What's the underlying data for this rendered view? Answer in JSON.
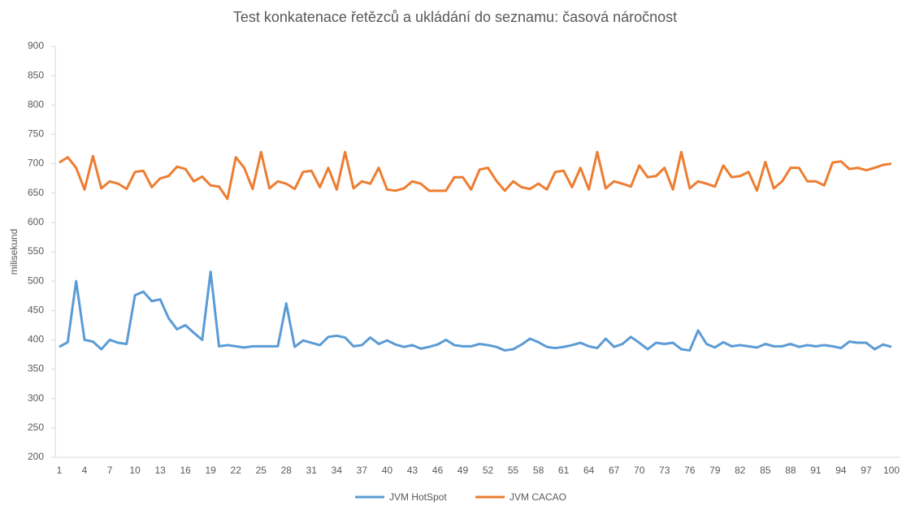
{
  "chart_data": {
    "type": "line",
    "title": "Test konkatenace řetězců a ukládání do seznamu: časová náročnost",
    "y_label": "milisekund",
    "categories": [
      "1",
      null,
      null,
      "4",
      null,
      null,
      "7",
      null,
      null,
      "10",
      null,
      null,
      "13",
      null,
      null,
      "16",
      null,
      null,
      "19",
      null,
      null,
      "22",
      null,
      null,
      "25",
      null,
      null,
      "28",
      null,
      null,
      "31",
      null,
      null,
      "34",
      null,
      null,
      "37",
      null,
      null,
      "40",
      null,
      null,
      "43",
      null,
      null,
      "46",
      null,
      null,
      "49",
      null,
      null,
      "52",
      null,
      null,
      "55",
      null,
      null,
      "58",
      null,
      null,
      "61",
      null,
      null,
      "64",
      null,
      null,
      "67",
      null,
      null,
      "70",
      null,
      null,
      "73",
      null,
      null,
      "76",
      null,
      null,
      "79",
      null,
      null,
      "82",
      null,
      null,
      "85",
      null,
      null,
      "88",
      null,
      null,
      "91",
      null,
      null,
      "94",
      null,
      null,
      "97",
      null,
      null,
      "100"
    ],
    "series": [
      {
        "name": "JVM HotSpot",
        "color": "#5b9bd5",
        "values": [
          388,
          396,
          500,
          400,
          397,
          384,
          400,
          395,
          393,
          476,
          482,
          466,
          469,
          437,
          418,
          425,
          412,
          400,
          516,
          389,
          391,
          389,
          387,
          389,
          389,
          389,
          389,
          462,
          388,
          399,
          395,
          391,
          405,
          407,
          404,
          389,
          391,
          404,
          393,
          399,
          392,
          388,
          391,
          385,
          388,
          392,
          400,
          391,
          389,
          389,
          393,
          391,
          388,
          382,
          384,
          392,
          402,
          396,
          388,
          386,
          388,
          391,
          395,
          389,
          386,
          402,
          388,
          393,
          405,
          395,
          384,
          395,
          393,
          395,
          384,
          382,
          416,
          393,
          387,
          396,
          389,
          391,
          389,
          387,
          393,
          389,
          389,
          393,
          388,
          391,
          389,
          391,
          389,
          386,
          397,
          395,
          395,
          384,
          392,
          388
        ]
      },
      {
        "name": "JVM CACAO",
        "color": "#ed7d31",
        "values": [
          702,
          711,
          693,
          656,
          713,
          658,
          670,
          666,
          657,
          686,
          688,
          660,
          675,
          679,
          695,
          691,
          670,
          678,
          663,
          661,
          640,
          711,
          693,
          657,
          720,
          658,
          670,
          666,
          657,
          686,
          688,
          660,
          693,
          656,
          720,
          658,
          670,
          666,
          693,
          656,
          654,
          658,
          670,
          666,
          654,
          654,
          654,
          677,
          677,
          656,
          690,
          693,
          671,
          654,
          670,
          660,
          657,
          666,
          656,
          686,
          688,
          660,
          693,
          656,
          720,
          658,
          670,
          666,
          661,
          697,
          677,
          679,
          693,
          656,
          720,
          658,
          670,
          666,
          661,
          697,
          677,
          679,
          686,
          654,
          703,
          658,
          670,
          693,
          693,
          670,
          670,
          663,
          702,
          704,
          691,
          693,
          689,
          693,
          698,
          700
        ]
      }
    ],
    "ylim": [
      200,
      900
    ],
    "yticks": [
      200,
      250,
      300,
      350,
      400,
      450,
      500,
      550,
      600,
      650,
      700,
      750,
      800,
      850,
      900
    ],
    "legend": "bottom"
  }
}
